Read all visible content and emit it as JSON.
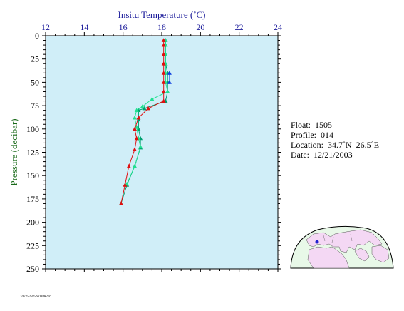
{
  "chart_data": {
    "type": "scatter",
    "xlabel": "Insitu Temperature (˚C)",
    "ylabel": "Pressure (decibar)",
    "xlim": [
      12,
      24
    ],
    "ylim": [
      0,
      250
    ],
    "y_inverted": true,
    "x_axis_position": "top",
    "grid": false,
    "x_ticks": [
      12,
      14,
      16,
      18,
      20,
      22,
      24
    ],
    "y_ticks": [
      0,
      25,
      50,
      75,
      100,
      125,
      150,
      175,
      200,
      225,
      250
    ],
    "series": [
      {
        "color": "#00a070",
        "points": [
          [
            18.2,
            5
          ],
          [
            18.2,
            10
          ],
          [
            18.2,
            20
          ],
          [
            18.2,
            30
          ],
          [
            18.3,
            40
          ],
          [
            18.3,
            50
          ],
          [
            18.3,
            60
          ],
          [
            18.2,
            70
          ],
          [
            17.1,
            78
          ],
          [
            16.8,
            80
          ],
          [
            16.8,
            90
          ],
          [
            16.8,
            100
          ],
          [
            16.9,
            110
          ],
          [
            16.9,
            120
          ],
          [
            16.6,
            140
          ],
          [
            16.2,
            160
          ],
          [
            15.9,
            180
          ]
        ]
      },
      {
        "color": "#20e090",
        "points": [
          [
            18.2,
            5
          ],
          [
            18.2,
            10
          ],
          [
            18.2,
            20
          ],
          [
            18.2,
            30
          ],
          [
            18.2,
            40
          ],
          [
            18.2,
            50
          ],
          [
            18.3,
            60
          ],
          [
            17.5,
            68
          ],
          [
            17.0,
            76
          ],
          [
            16.7,
            80
          ],
          [
            16.6,
            88
          ],
          [
            16.7,
            98
          ],
          [
            16.8,
            110
          ],
          [
            16.9,
            119
          ],
          [
            16.6,
            140
          ],
          [
            16.2,
            159
          ]
        ]
      },
      {
        "color": "#1040e0",
        "points": [
          [
            18.4,
            40
          ],
          [
            18.4,
            50
          ]
        ]
      },
      {
        "color": "#e01010",
        "points": [
          [
            18.1,
            5
          ],
          [
            18.1,
            10
          ],
          [
            18.1,
            20
          ],
          [
            18.1,
            30
          ],
          [
            18.1,
            40
          ],
          [
            18.1,
            50
          ],
          [
            18.1,
            60
          ],
          [
            18.1,
            70
          ],
          [
            17.3,
            78
          ],
          [
            16.8,
            88
          ],
          [
            16.6,
            100
          ],
          [
            16.7,
            110
          ],
          [
            16.6,
            122
          ],
          [
            16.3,
            140
          ],
          [
            16.1,
            160
          ],
          [
            15.9,
            180
          ]
        ]
      }
    ]
  },
  "info": {
    "float": "Float:  1505",
    "profile": "Profile:  014",
    "location": "Location:  34.7˚N  26.5˚E",
    "date": "Date:  12/21/2003"
  },
  "footer_id": "1072529256.0388276",
  "colors": {
    "plot_bg": "#d0eef8",
    "axis": "#000000",
    "xlabel_color": "#1a1a9a",
    "tick_label_color": "#1a1a9a",
    "ylabel_color": "#1a6b1a",
    "map_ocean": "#e8f8e8",
    "map_land": "#f4d8f4",
    "map_marker": "#2020d0"
  }
}
